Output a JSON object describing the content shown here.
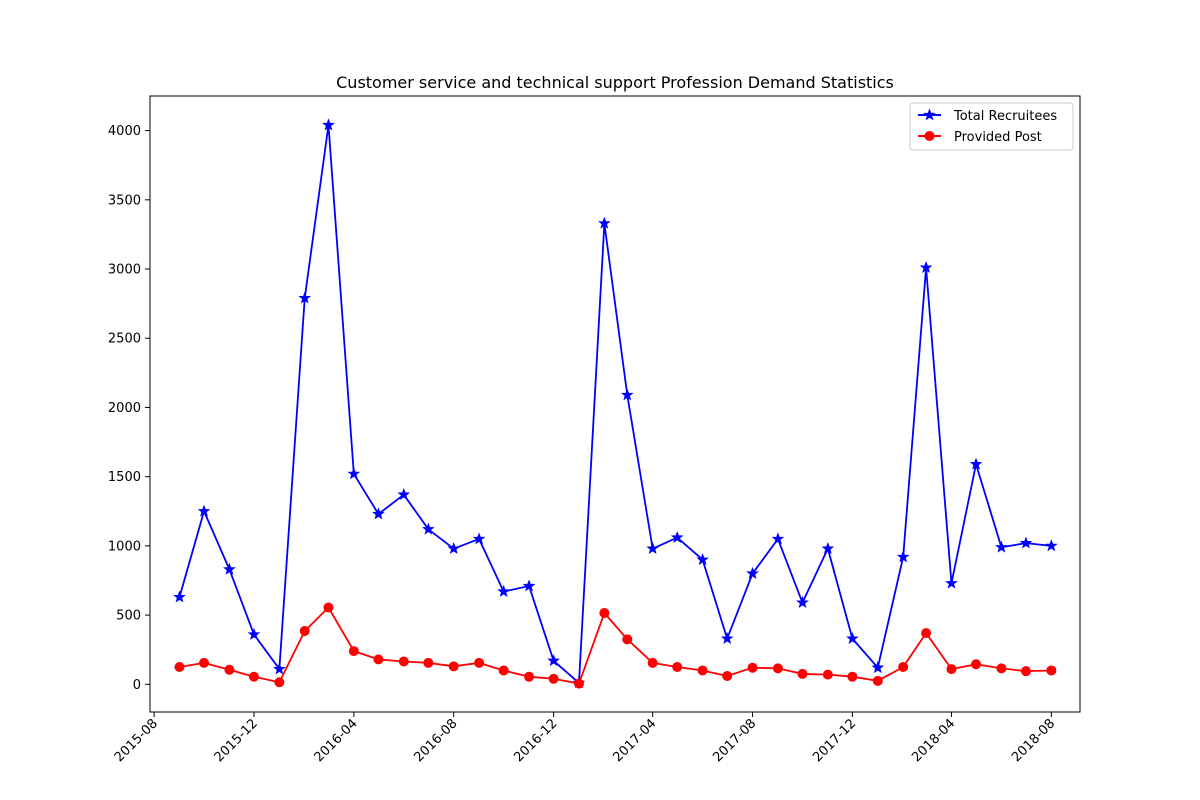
{
  "chart_data": {
    "type": "line",
    "title": "Customer service and technical support Profession Demand Statistics",
    "xlabel": "",
    "ylabel": "",
    "x": [
      "2015-09",
      "2015-10",
      "2015-11",
      "2015-12",
      "2016-01",
      "2016-02",
      "2016-03",
      "2016-04",
      "2016-05",
      "2016-06",
      "2016-07",
      "2016-08",
      "2016-09",
      "2016-10",
      "2016-11",
      "2016-12",
      "2017-01",
      "2017-02",
      "2017-03",
      "2017-04",
      "2017-05",
      "2017-06",
      "2017-07",
      "2017-08",
      "2017-09",
      "2017-10",
      "2017-11",
      "2017-12",
      "2018-01",
      "2018-02",
      "2018-03",
      "2018-04",
      "2018-05",
      "2018-06",
      "2018-07",
      "2018-08"
    ],
    "x_tick_labels": [
      "2015-08",
      "2015-12",
      "2016-04",
      "2016-08",
      "2016-12",
      "2017-04",
      "2017-08",
      "2017-12",
      "2018-04",
      "2018-08"
    ],
    "y_ticks": [
      0,
      500,
      1000,
      1500,
      2000,
      2500,
      3000,
      3500,
      4000
    ],
    "ylim": [
      -200,
      4250
    ],
    "xlim": [
      "2015-07-27",
      "2018-09-05"
    ],
    "grid": false,
    "legend_position": "upper right",
    "series": [
      {
        "name": "Total Recruitees",
        "color": "#0000ff",
        "marker": "star",
        "values": [
          630,
          1250,
          830,
          360,
          110,
          2790,
          4040,
          1520,
          1230,
          1370,
          1120,
          980,
          1050,
          670,
          710,
          170,
          10,
          3330,
          2090,
          980,
          1060,
          900,
          330,
          800,
          1050,
          590,
          980,
          330,
          120,
          920,
          3010,
          730,
          1590,
          990,
          1020,
          1000
        ]
      },
      {
        "name": "Provided Post",
        "color": "#ff0000",
        "marker": "circle",
        "values": [
          125,
          155,
          105,
          55,
          15,
          385,
          555,
          240,
          180,
          165,
          155,
          130,
          155,
          100,
          55,
          40,
          5,
          515,
          325,
          155,
          125,
          100,
          60,
          120,
          115,
          75,
          70,
          55,
          25,
          125,
          370,
          110,
          145,
          115,
          95,
          100
        ]
      }
    ]
  }
}
